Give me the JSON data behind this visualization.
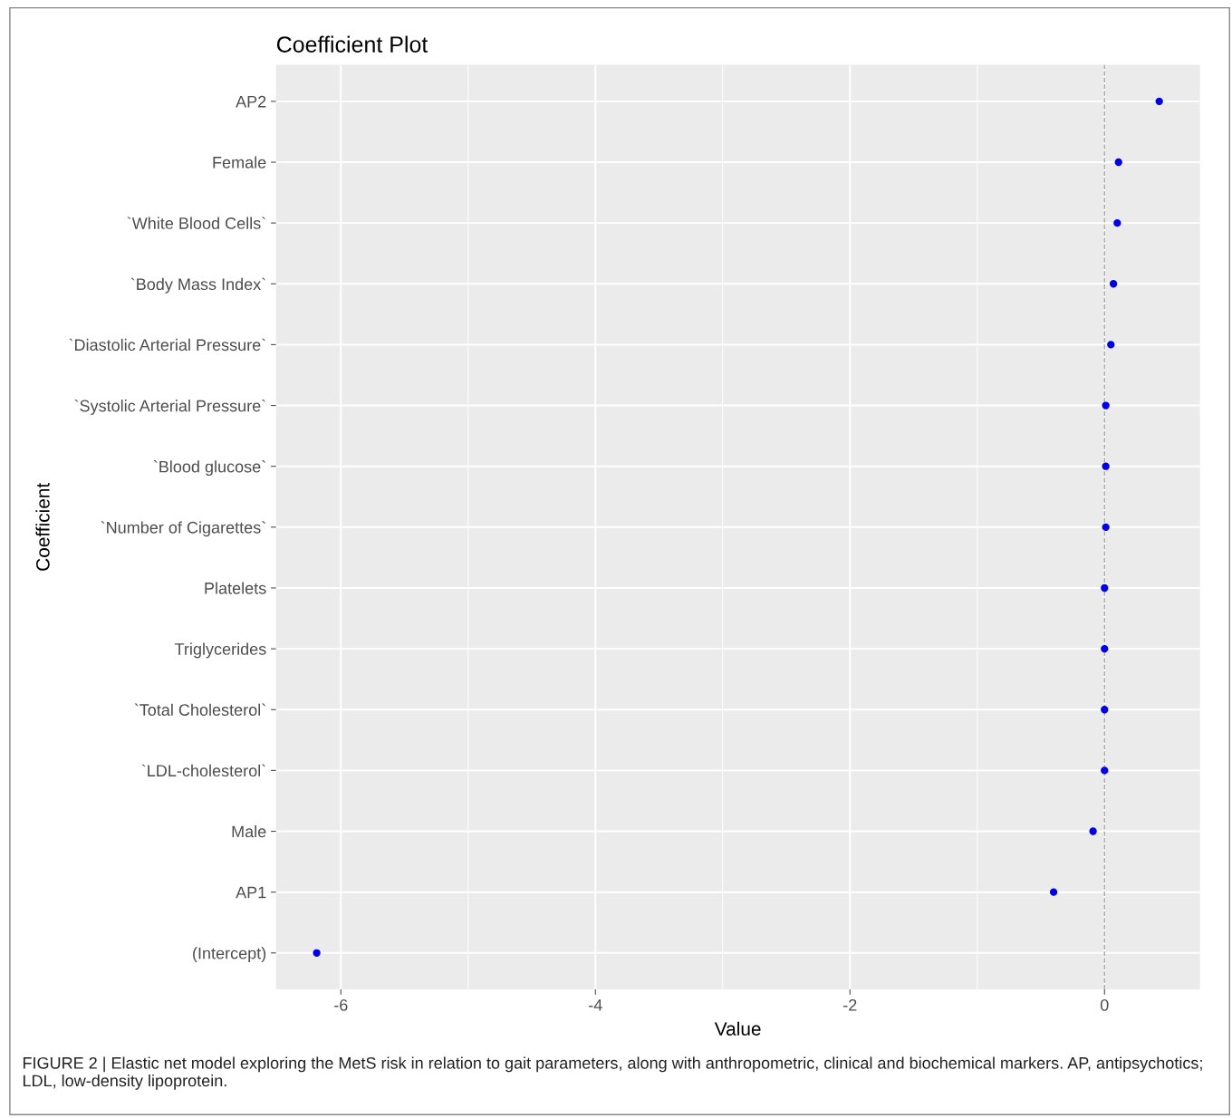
{
  "chart_data": {
    "type": "scatter",
    "title": "Coefficient Plot",
    "xlabel": "Value",
    "ylabel": "Coefficient",
    "orientation": "horizontal",
    "categories": [
      "AP2",
      "Female",
      "`White Blood Cells`",
      "`Body Mass Index`",
      "`Diastolic Arterial Pressure`",
      "`Systolic Arterial Pressure`",
      "`Blood glucose`",
      "`Number of Cigarettes`",
      "Platelets",
      "Triglycerides",
      "`Total Cholesterol`",
      "`LDL-cholesterol`",
      "Male",
      "AP1",
      "(Intercept)"
    ],
    "series": [
      {
        "color": "#0000e6",
        "values": [
          0.43,
          0.11,
          0.1,
          0.07,
          0.05,
          0.01,
          0.01,
          0.01,
          0.0,
          0.0,
          0.0,
          0.0,
          -0.09,
          -0.4,
          -6.19
        ]
      }
    ],
    "marker": "circle",
    "xlim": [
      -6.51,
      0.75
    ],
    "xticks": [
      -6,
      {
        "value": -5,
        "label": null
      },
      -4,
      {
        "value": -3,
        "label": null
      },
      -2,
      {
        "value": -1,
        "label": null
      },
      0
    ],
    "grid": true,
    "ref_lines": [
      {
        "axis": "x",
        "value": 0,
        "color": "#a6a6a6",
        "line_style": "dashed"
      }
    ],
    "annotations": [
      "FIGURE 2 | Elastic net model exploring the MetS risk in relation to gait parameters, along with anthropometric, clinical and biochemical markers. AP, antipsychotics; LDL, low-density lipoprotein."
    ]
  }
}
